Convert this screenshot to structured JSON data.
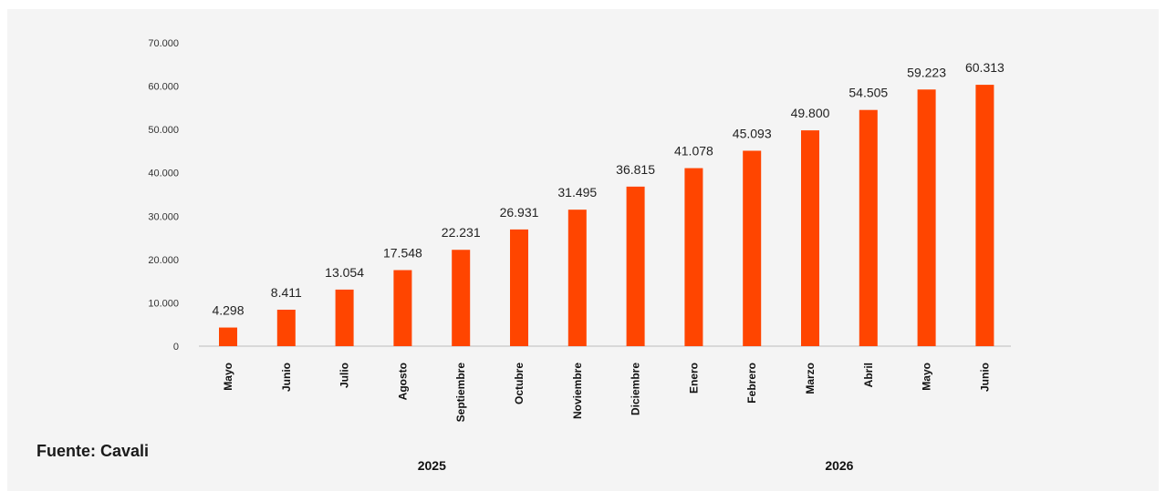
{
  "source": "Fuente: Cavali",
  "colors": {
    "bar": "#ff4500",
    "axis": "#bbbbbb",
    "background": "#f4f4f4"
  },
  "chart_data": {
    "type": "bar",
    "categories": [
      "Mayo",
      "Junio",
      "Julio",
      "Agosto",
      "Septiembre",
      "Octubre",
      "Noviembre",
      "Diciembre",
      "Enero",
      "Febrero",
      "Marzo",
      "Abril",
      "Mayo",
      "Junio"
    ],
    "values": [
      4298,
      8411,
      13054,
      17548,
      22231,
      26931,
      31495,
      36815,
      41078,
      45093,
      49800,
      54505,
      59223,
      60313
    ],
    "value_labels": [
      "4.298",
      "8.411",
      "13.054",
      "17.548",
      "22.231",
      "26.931",
      "31.495",
      "36.815",
      "41.078",
      "45.093",
      "49.800",
      "54.505",
      "59.223",
      "60.313"
    ],
    "y_ticks": [
      0,
      10000,
      20000,
      30000,
      40000,
      50000,
      60000,
      70000
    ],
    "y_tick_labels": [
      "0",
      "10.000",
      "20.000",
      "30.000",
      "40.000",
      "50.000",
      "60.000",
      "70.000"
    ],
    "ylim": [
      0,
      70000
    ],
    "grid": false,
    "year_groups": [
      {
        "label": "2025",
        "start": 0,
        "end": 7
      },
      {
        "label": "2026",
        "start": 8,
        "end": 13
      }
    ]
  }
}
